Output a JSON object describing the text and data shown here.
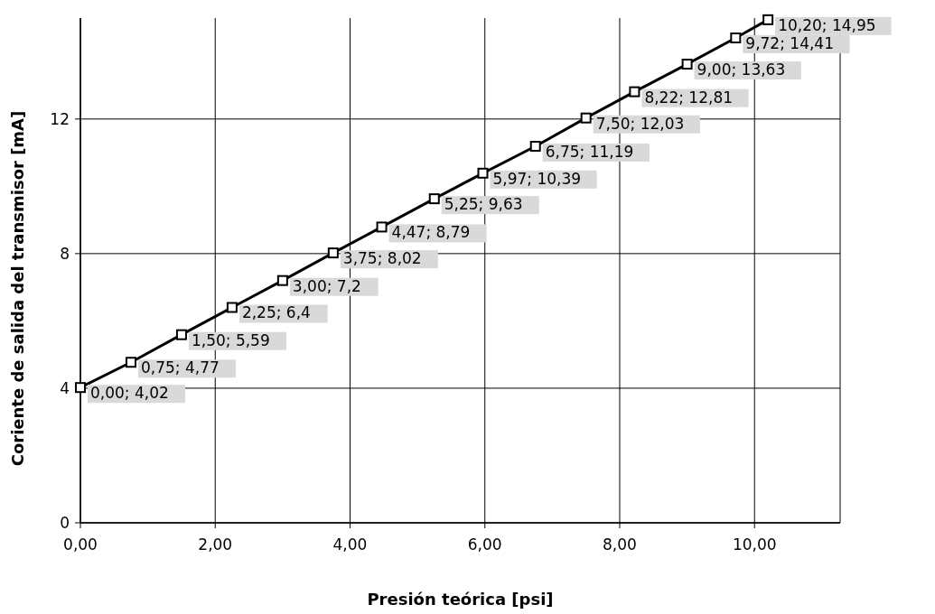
{
  "chart_data": {
    "type": "line",
    "xlabel": "Presión teórica [psi]",
    "ylabel": "Coriente de salida del transmisor [mA]",
    "xlim": [
      0,
      11.27
    ],
    "ylim": [
      0,
      15
    ],
    "xticks": [
      {
        "value": 0,
        "label": "0,00"
      },
      {
        "value": 2,
        "label": "2,00"
      },
      {
        "value": 4,
        "label": "4,00"
      },
      {
        "value": 6,
        "label": "6,00"
      },
      {
        "value": 8,
        "label": "8,00"
      },
      {
        "value": 10,
        "label": "10,00"
      }
    ],
    "yticks": [
      0,
      4,
      8,
      12
    ],
    "grid": true,
    "marker": "square",
    "line_style": "solid",
    "series": [
      {
        "color": "#000000",
        "x": [
          0,
          0.75,
          1.5,
          2.25,
          3,
          3.75,
          4.47,
          5.25,
          5.97,
          6.75,
          7.5,
          8.22,
          9,
          9.72,
          10.2
        ],
        "values": [
          4.02,
          4.77,
          5.59,
          6.4,
          7.2,
          8.02,
          8.79,
          9.63,
          10.39,
          11.19,
          12.03,
          12.81,
          13.63,
          14.41,
          14.95
        ],
        "value_labels": [
          "0,00; 4,02",
          "0,75; 4,77",
          "1,50; 5,59",
          "2,25; 6,4",
          "3,00; 7,2",
          "3,75; 8,02",
          "4,47; 8,79",
          "5,25; 9,63",
          "5,97; 10,39",
          "6,75; 11,19",
          "7,50; 12,03",
          "8,22; 12,81",
          "9,00; 13,63",
          "9,72; 14,41",
          "10,20; 14,95"
        ]
      }
    ]
  }
}
